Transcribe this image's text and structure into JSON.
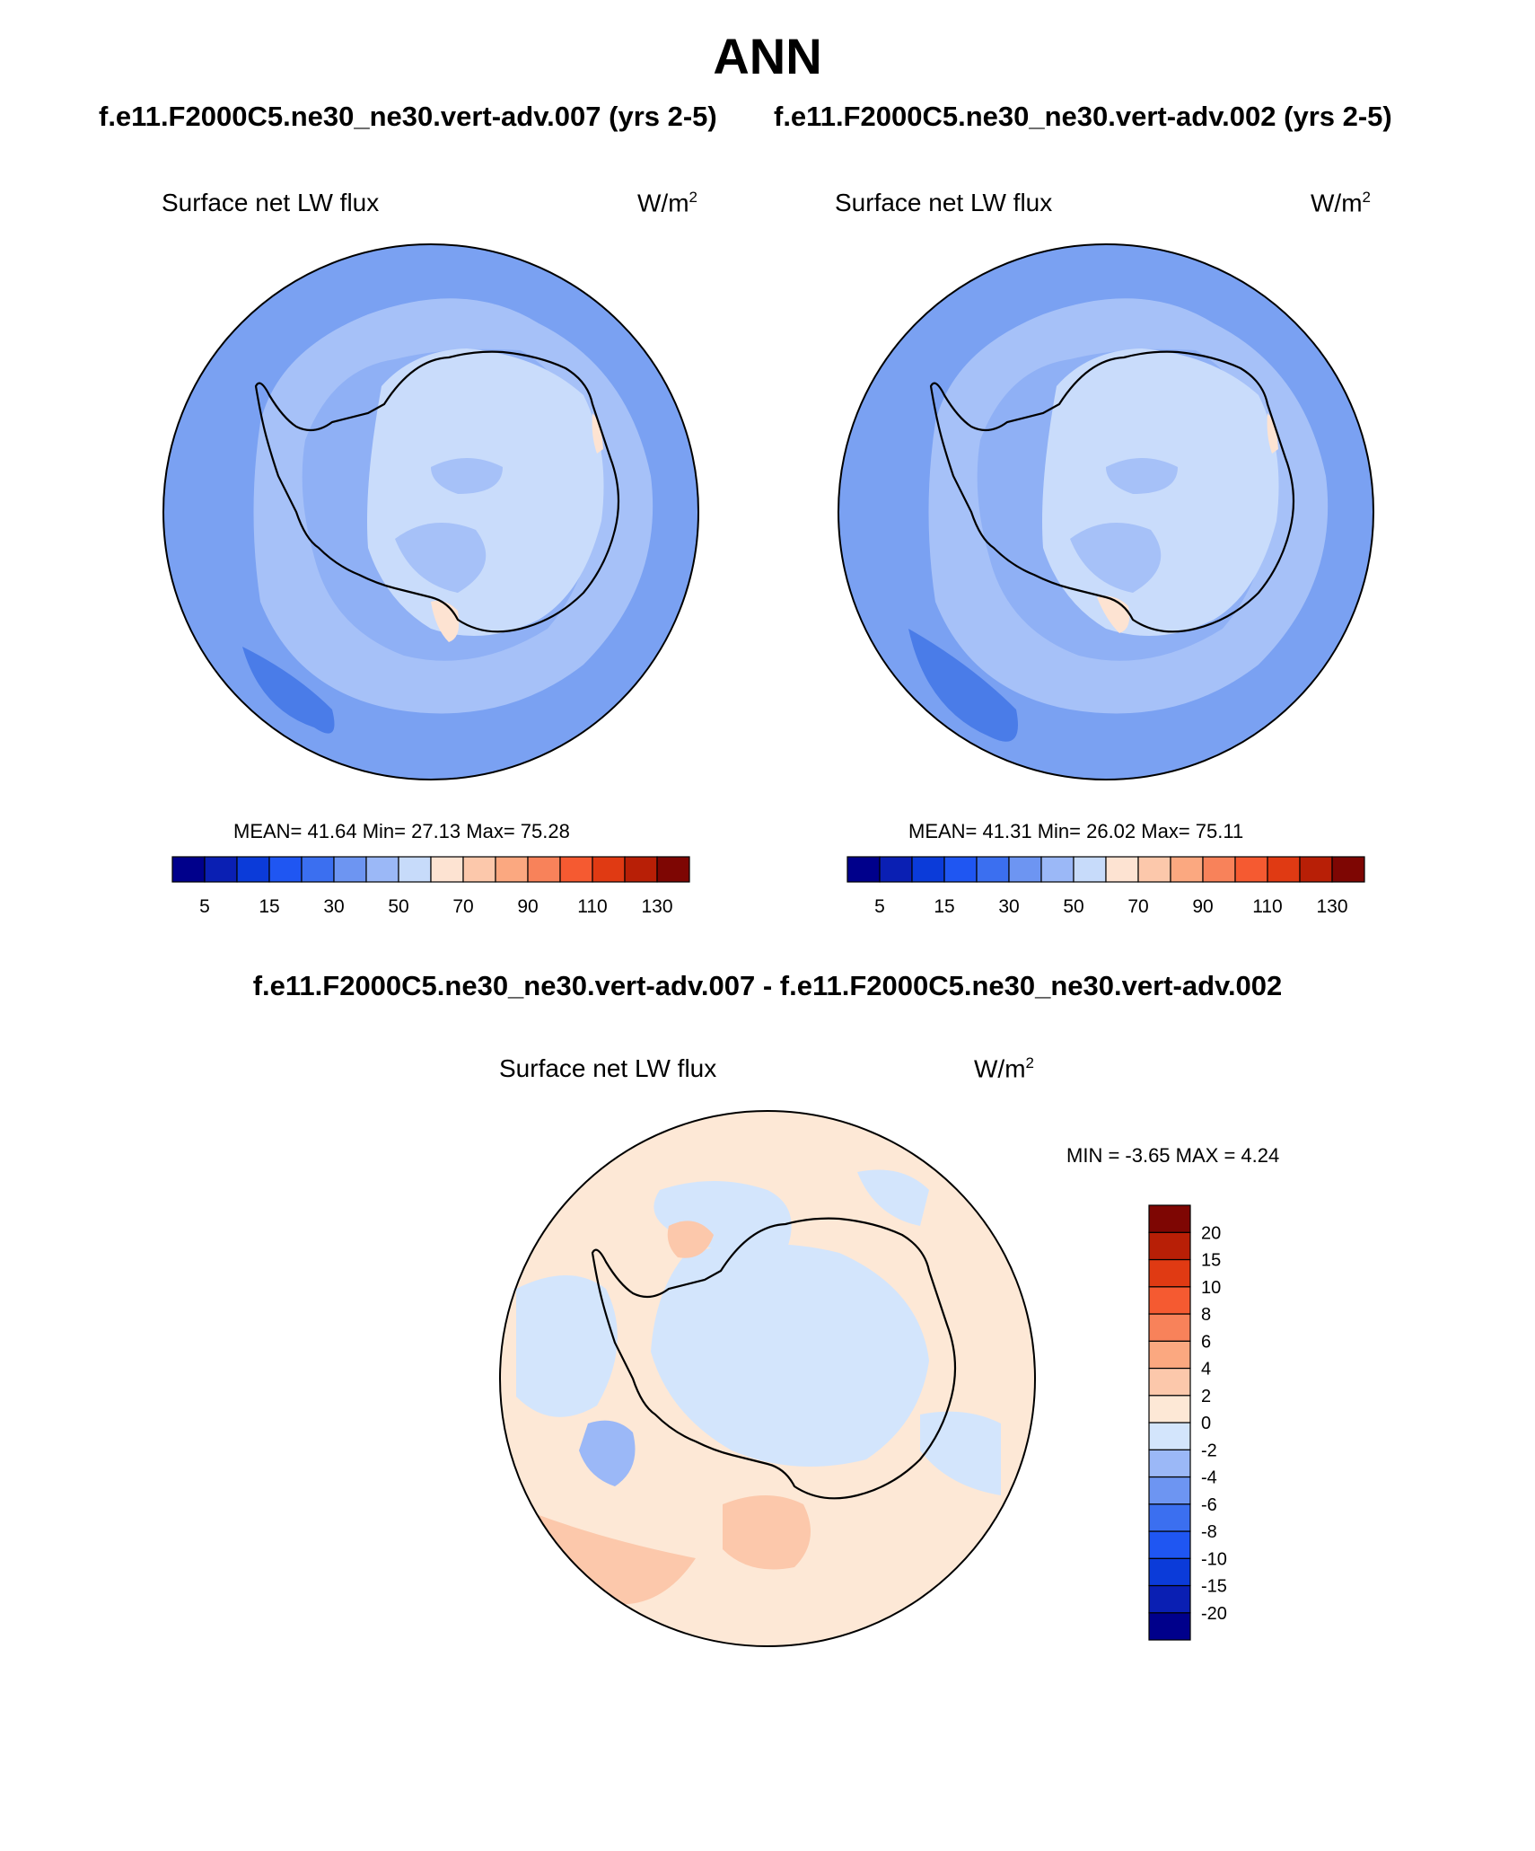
{
  "figure": {
    "title": "ANN",
    "case_left": "f.e11.F2000C5.ne30_ne30.vert-adv.007 (yrs 2-5)",
    "case_right": "f.e11.F2000C5.ne30_ne30.vert-adv.002 (yrs 2-5)",
    "diff_title": "f.e11.F2000C5.ne30_ne30.vert-adv.007 - f.e11.F2000C5.ne30_ne30.vert-adv.002"
  },
  "panels": [
    {
      "variable": "Surface net LW flux",
      "units_base": "W/m",
      "units_exp": "2",
      "stats": "MEAN=  41.64  Min=  27.13  Max=  75.28"
    },
    {
      "variable": "Surface net LW flux",
      "units_base": "W/m",
      "units_exp": "2",
      "stats": "MEAN=  41.31  Min=  26.02  Max=  75.11"
    },
    {
      "variable": "Surface net LW flux",
      "units_base": "W/m",
      "units_exp": "2",
      "stats": "MIN =  -3.65 MAX =   4.24"
    }
  ],
  "colorbar_main": {
    "colors": [
      "#00008b",
      "#0a1fb3",
      "#0b3bd9",
      "#1f56f2",
      "#3b6ff0",
      "#6d95f2",
      "#9bb8f7",
      "#c7dbfa",
      "#fde3d2",
      "#fcc8ab",
      "#fba880",
      "#f8825a",
      "#f55a31",
      "#e03a13",
      "#b81f06",
      "#7e0603"
    ],
    "labels": [
      "5",
      "15",
      "30",
      "50",
      "70",
      "90",
      "110",
      "130"
    ]
  },
  "colorbar_diff": {
    "colors": [
      "#00008b",
      "#0a1fb3",
      "#0b3bd9",
      "#1f56f2",
      "#3b6ff0",
      "#6d95f2",
      "#9bb8f7",
      "#d3e5fc",
      "#fde8d6",
      "#fcc8ab",
      "#fba880",
      "#f8825a",
      "#f55a31",
      "#e03a13",
      "#b81f06",
      "#7e0603"
    ],
    "labels": [
      "-20",
      "-15",
      "-10",
      "-8",
      "-6",
      "-4",
      "-2",
      "0",
      "2",
      "4",
      "6",
      "8",
      "10",
      "15",
      "20"
    ]
  }
}
